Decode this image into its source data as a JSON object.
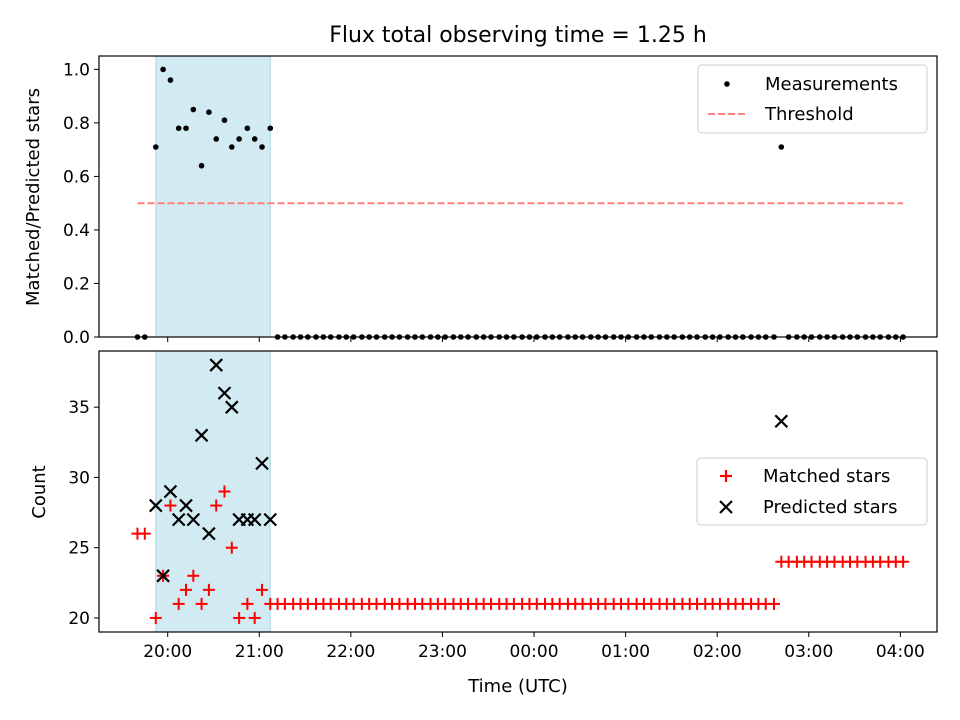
{
  "title": "Flux total observing time = 1.25 h",
  "chart_data": [
    {
      "type": "scatter",
      "ylabel": "Matched/Predicted stars",
      "xlabel": "",
      "ylim": [
        0,
        1.05
      ],
      "yticks": [
        "0.0",
        "0.2",
        "0.4",
        "0.6",
        "0.8",
        "1.0"
      ],
      "grid": false,
      "legend_position": "top-right",
      "highlight_span": {
        "from": 19.87,
        "to": 21.12,
        "color": "#add8e6"
      },
      "series": [
        {
          "name": "Measurements",
          "color": "#000000",
          "x": [
            19.67,
            19.75,
            19.87,
            19.95,
            20.03,
            20.12,
            20.2,
            20.28,
            20.37,
            20.45,
            20.53,
            20.62,
            20.7,
            20.78,
            20.87,
            20.95,
            21.03,
            21.12,
            21.2,
            21.28,
            21.37,
            21.45,
            21.53,
            21.62,
            21.7,
            21.78,
            21.87,
            21.95,
            22.03,
            22.12,
            22.2,
            22.28,
            22.37,
            22.45,
            22.53,
            22.62,
            22.7,
            22.78,
            22.87,
            22.95,
            23.03,
            23.12,
            23.2,
            23.28,
            23.37,
            23.45,
            23.53,
            23.62,
            23.7,
            23.78,
            23.87,
            23.95,
            24.03,
            24.12,
            24.2,
            24.28,
            24.37,
            24.45,
            24.53,
            24.62,
            24.7,
            24.78,
            24.87,
            24.95,
            25.03,
            25.12,
            25.2,
            25.28,
            25.37,
            25.45,
            25.53,
            25.62,
            25.7,
            25.78,
            25.87,
            25.95,
            26.03,
            26.12,
            26.2,
            26.28,
            26.37,
            26.45,
            26.53,
            26.62,
            26.7,
            26.78,
            26.87,
            26.95,
            27.03,
            27.12,
            27.2,
            27.28,
            27.37,
            27.45,
            27.53,
            27.62,
            27.7,
            27.78,
            27.87,
            27.95,
            28.03
          ],
          "y": [
            0,
            0,
            0.71,
            1.0,
            0.96,
            0.78,
            0.78,
            0.85,
            0.64,
            0.84,
            0.74,
            0.81,
            0.71,
            0.74,
            0.78,
            0.74,
            0.71,
            0.78,
            0,
            0,
            0,
            0,
            0,
            0,
            0,
            0,
            0,
            0,
            0,
            0,
            0,
            0,
            0,
            0,
            0,
            0,
            0,
            0,
            0,
            0,
            0,
            0,
            0,
            0,
            0,
            0,
            0,
            0,
            0,
            0,
            0,
            0,
            0,
            0,
            0,
            0,
            0,
            0,
            0,
            0,
            0,
            0,
            0,
            0,
            0,
            0,
            0,
            0,
            0,
            0,
            0,
            0,
            0,
            0,
            0,
            0,
            0,
            0,
            0,
            0,
            0,
            0,
            0,
            0,
            0.71,
            0,
            0,
            0,
            0,
            0,
            0,
            0,
            0,
            0,
            0,
            0,
            0,
            0,
            0,
            0,
            0
          ]
        },
        {
          "name": "Threshold",
          "color": "#ff7f7f",
          "style": "dashed",
          "x": [
            19.67,
            28.03
          ],
          "y": [
            0.5,
            0.5
          ]
        }
      ]
    },
    {
      "type": "scatter",
      "ylabel": "Count",
      "xlabel": "Time (UTC)",
      "ylim": [
        19,
        39
      ],
      "yticks": [
        "20",
        "25",
        "30",
        "35"
      ],
      "xticks": [
        {
          "v": 20,
          "label": "20:00"
        },
        {
          "v": 21,
          "label": "21:00"
        },
        {
          "v": 22,
          "label": "22:00"
        },
        {
          "v": 23,
          "label": "23:00"
        },
        {
          "v": 24,
          "label": "00:00"
        },
        {
          "v": 25,
          "label": "01:00"
        },
        {
          "v": 26,
          "label": "02:00"
        },
        {
          "v": 27,
          "label": "03:00"
        },
        {
          "v": 28,
          "label": "04:00"
        }
      ],
      "grid": false,
      "legend_position": "center-right",
      "highlight_span": {
        "from": 19.87,
        "to": 21.12,
        "color": "#add8e6"
      },
      "series": [
        {
          "name": "Matched stars",
          "color": "#ff0000",
          "marker": "plus",
          "x": [
            19.67,
            19.75,
            19.87,
            19.95,
            20.03,
            20.12,
            20.2,
            20.28,
            20.37,
            20.45,
            20.53,
            20.62,
            20.7,
            20.78,
            20.87,
            20.95,
            21.03,
            21.12,
            21.2,
            21.28,
            21.37,
            21.45,
            21.53,
            21.62,
            21.7,
            21.78,
            21.87,
            21.95,
            22.03,
            22.12,
            22.2,
            22.28,
            22.37,
            22.45,
            22.53,
            22.62,
            22.7,
            22.78,
            22.87,
            22.95,
            23.03,
            23.12,
            23.2,
            23.28,
            23.37,
            23.45,
            23.53,
            23.62,
            23.7,
            23.78,
            23.87,
            23.95,
            24.03,
            24.12,
            24.2,
            24.28,
            24.37,
            24.45,
            24.53,
            24.62,
            24.7,
            24.78,
            24.87,
            24.95,
            25.03,
            25.12,
            25.2,
            25.28,
            25.37,
            25.45,
            25.53,
            25.62,
            25.7,
            25.78,
            25.87,
            25.95,
            26.03,
            26.12,
            26.2,
            26.28,
            26.37,
            26.45,
            26.53,
            26.62,
            26.7,
            26.78,
            26.87,
            26.95,
            27.03,
            27.12,
            27.2,
            27.28,
            27.37,
            27.45,
            27.53,
            27.62,
            27.7,
            27.78,
            27.87,
            27.95,
            28.03
          ],
          "y": [
            26,
            26,
            20,
            23,
            28,
            21,
            22,
            23,
            21,
            22,
            28,
            29,
            25,
            20,
            21,
            20,
            22,
            21,
            21,
            21,
            21,
            21,
            21,
            21,
            21,
            21,
            21,
            21,
            21,
            21,
            21,
            21,
            21,
            21,
            21,
            21,
            21,
            21,
            21,
            21,
            21,
            21,
            21,
            21,
            21,
            21,
            21,
            21,
            21,
            21,
            21,
            21,
            21,
            21,
            21,
            21,
            21,
            21,
            21,
            21,
            21,
            21,
            21,
            21,
            21,
            21,
            21,
            21,
            21,
            21,
            21,
            21,
            21,
            21,
            21,
            21,
            21,
            21,
            21,
            21,
            21,
            21,
            21,
            21,
            24,
            24,
            24,
            24,
            24,
            24,
            24,
            24,
            24,
            24,
            24,
            24,
            24,
            24,
            24,
            24,
            24
          ]
        },
        {
          "name": "Predicted stars",
          "color": "#000000",
          "marker": "x",
          "x": [
            19.87,
            19.95,
            20.03,
            20.12,
            20.2,
            20.28,
            20.37,
            20.45,
            20.53,
            20.62,
            20.7,
            20.78,
            20.87,
            20.95,
            21.03,
            21.12,
            26.7
          ],
          "y": [
            28,
            23,
            29,
            27,
            28,
            27,
            33,
            26,
            38,
            36,
            35,
            27,
            27,
            27,
            31,
            27,
            34
          ]
        }
      ]
    }
  ]
}
